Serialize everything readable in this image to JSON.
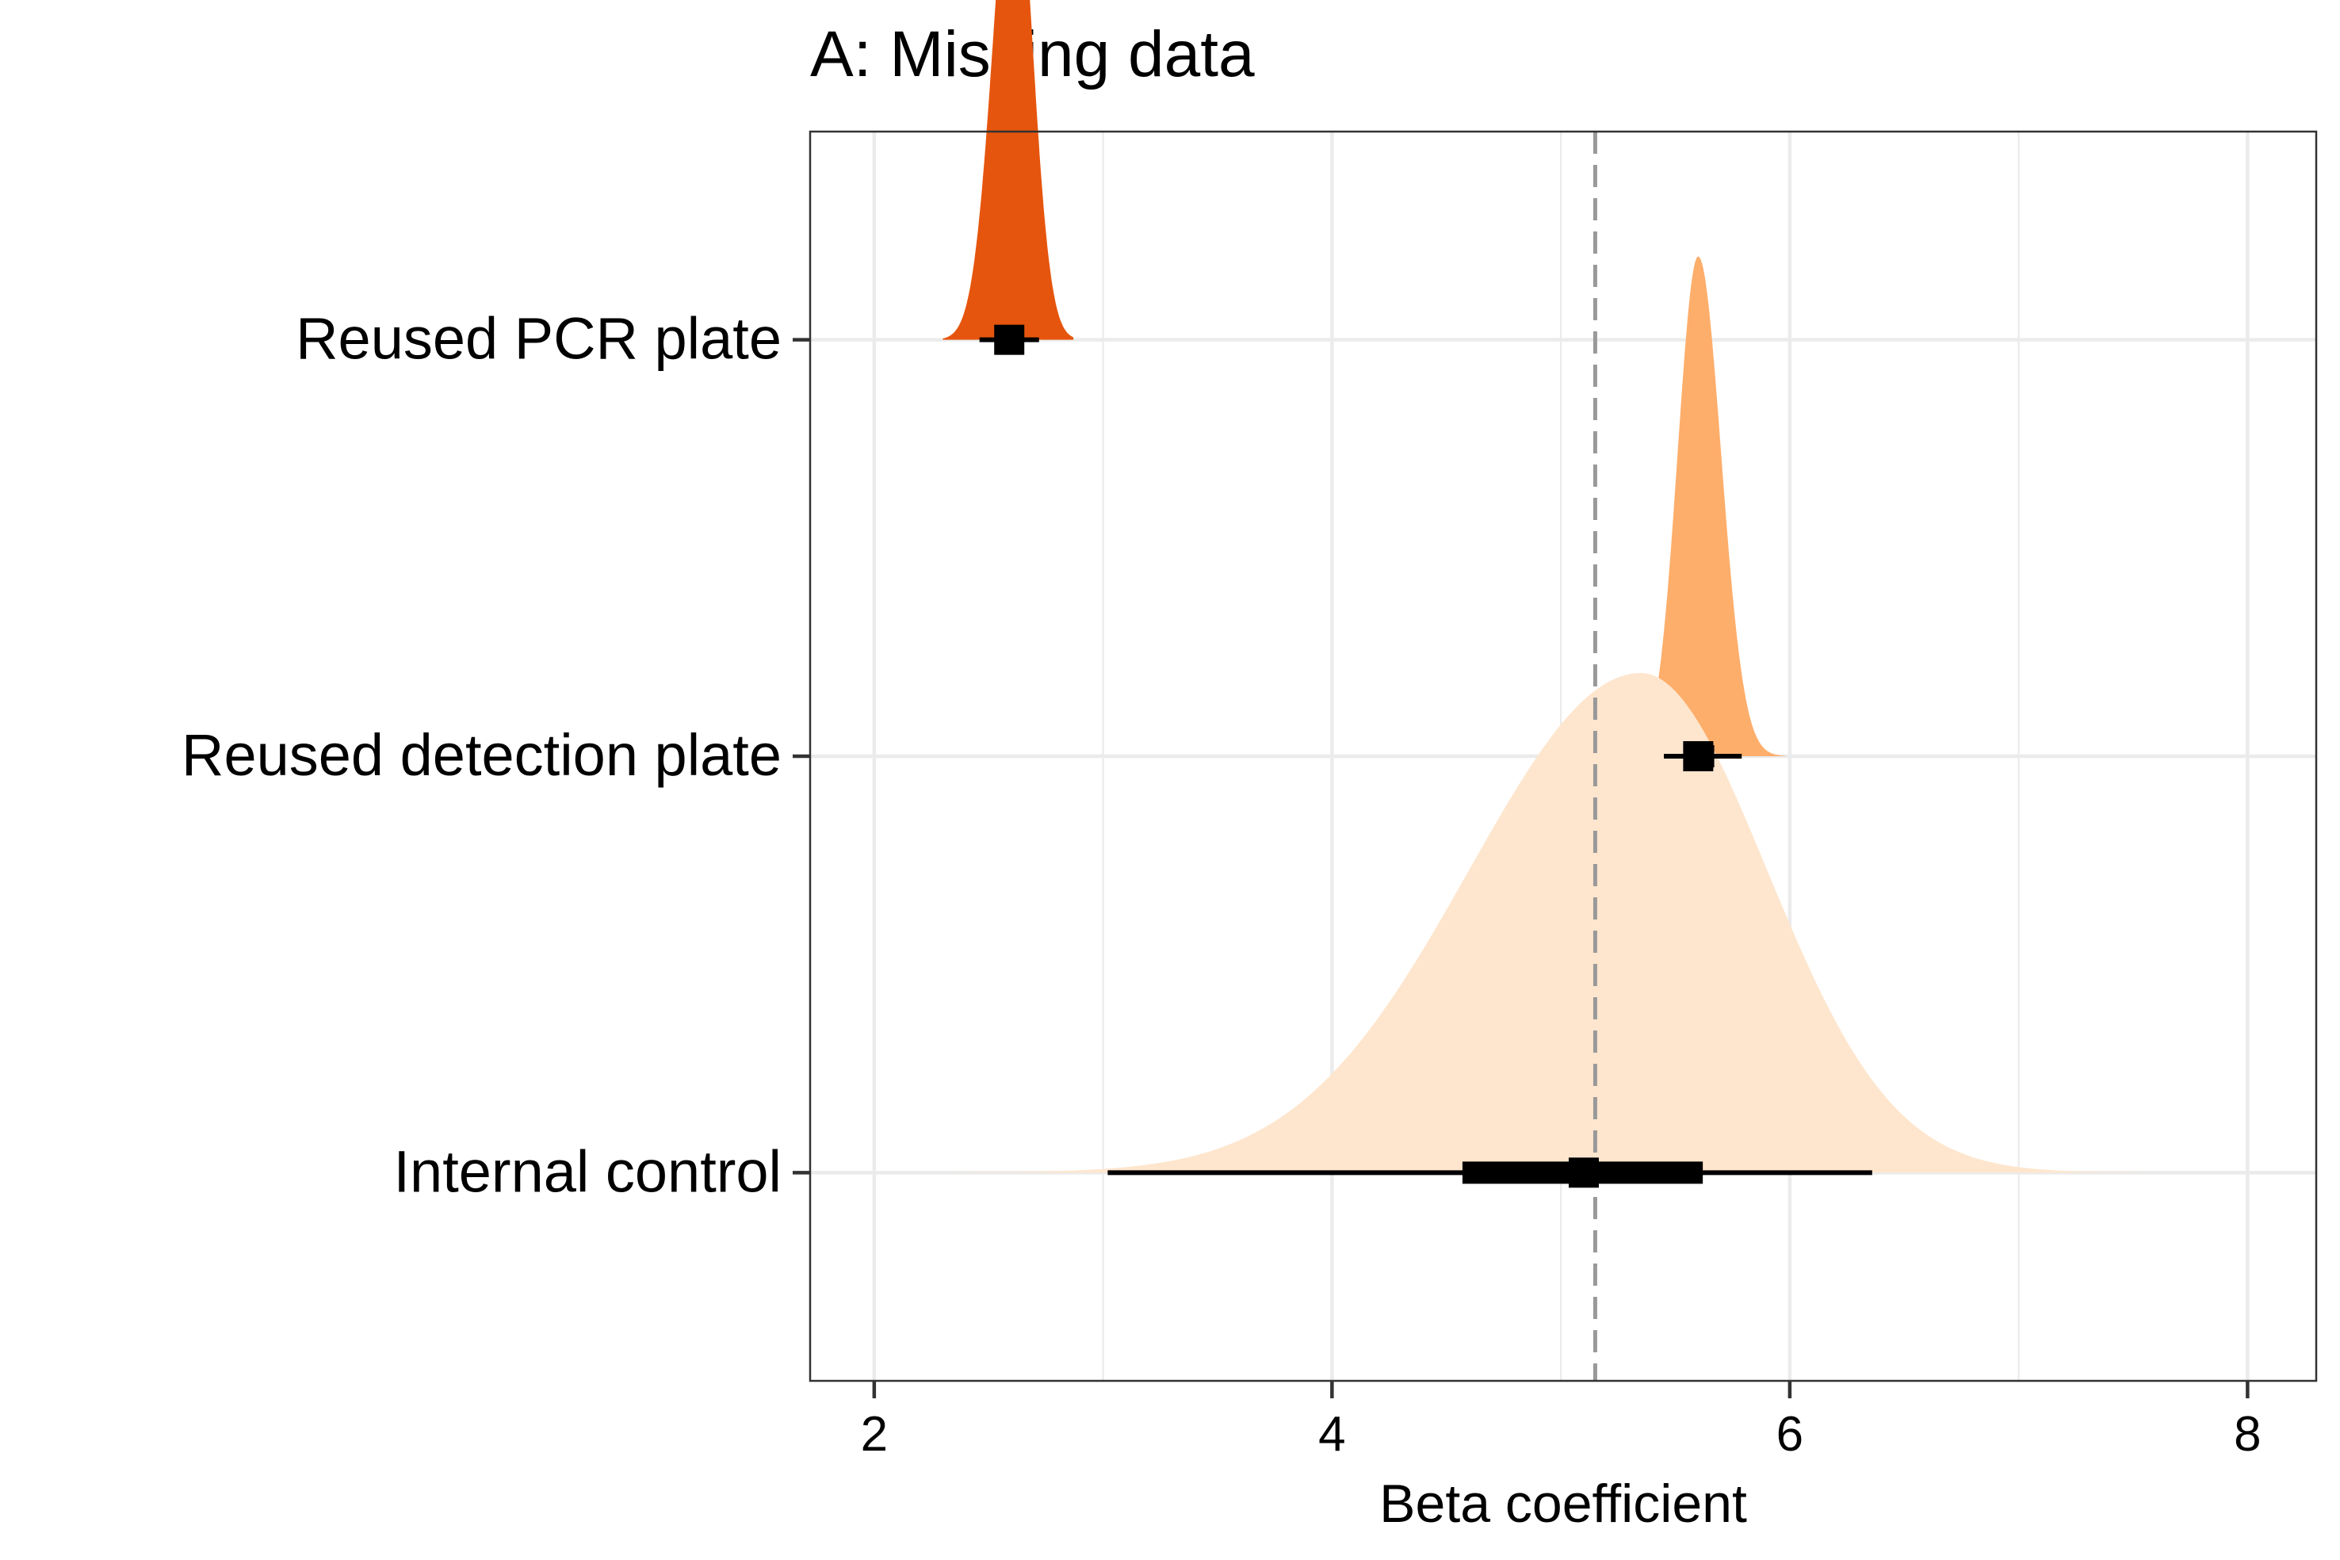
{
  "chart_data": {
    "type": "halfeye",
    "title": "A: Missing data",
    "xlabel": "Beta coefficient",
    "ylabel": "",
    "xlim": [
      1.72,
      8.3
    ],
    "x_ticks": [
      2,
      4,
      6,
      8
    ],
    "x_tick_labels": [
      "2",
      "4",
      "6",
      "8"
    ],
    "grid": true,
    "legend": "none",
    "reference_line": {
      "x": 5.15,
      "color": "#999999",
      "style": "dashed"
    },
    "series": [
      {
        "name": "Reused PCR plate",
        "color": "#e6550d",
        "point": 2.59,
        "interval_66": [
          2.53,
          2.65
        ],
        "interval_95": [
          2.46,
          2.72
        ],
        "density": {
          "support": [
            2.3,
            2.87
          ],
          "mode": 2.61,
          "sd_left": 0.09,
          "sd_right": 0.08,
          "height": 0.4
        }
      },
      {
        "name": "Reused detection plate",
        "color": "#fdae6b",
        "point": 5.6,
        "interval_66": [
          5.54,
          5.67
        ],
        "interval_95": [
          5.45,
          5.79
        ],
        "density": {
          "support": [
            5.25,
            5.98
          ],
          "mode": 5.6,
          "sd_left": 0.09,
          "sd_right": 0.1,
          "height": 0.4
        }
      },
      {
        "name": "Internal control",
        "color": "#fee6ce",
        "point": 5.1,
        "interval_66": [
          4.57,
          5.62
        ],
        "interval_95": [
          3.02,
          6.36
        ],
        "density": {
          "support": [
            2.0,
            7.8
          ],
          "mode": 5.35,
          "sd_left": 0.75,
          "sd_right": 0.55,
          "height": 0.4
        }
      }
    ]
  }
}
